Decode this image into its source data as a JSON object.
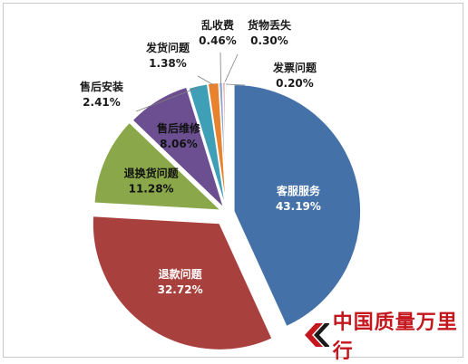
{
  "chart_data": {
    "type": "pie",
    "title": "",
    "slices": [
      {
        "label": "客服服务",
        "value": 43.19,
        "value_label": "43.19%",
        "color": "#4472a8"
      },
      {
        "label": "退款问题",
        "value": 32.72,
        "value_label": "32.72%",
        "color": "#a8403d"
      },
      {
        "label": "退换货问题",
        "value": 11.28,
        "value_label": "11.28%",
        "color": "#8aa84a"
      },
      {
        "label": "售后维修",
        "value": 8.06,
        "value_label": "8.06%",
        "color": "#6b4f91"
      },
      {
        "label": "售后安装",
        "value": 2.41,
        "value_label": "2.41%",
        "color": "#3f9fb6"
      },
      {
        "label": "发货问题",
        "value": 1.38,
        "value_label": "1.38%",
        "color": "#e8822e"
      },
      {
        "label": "乱收费",
        "value": 0.46,
        "value_label": "0.46%",
        "color": "#8ea7cf"
      },
      {
        "label": "货物丢失",
        "value": 0.3,
        "value_label": "0.30%",
        "color": "#d9928f"
      },
      {
        "label": "发票问题",
        "value": 0.2,
        "value_label": "0.20%",
        "color": "#b9cf8c"
      }
    ],
    "legend": "none",
    "start": "12 o'clock, clockwise"
  },
  "watermark": {
    "text": "中国质量万里行",
    "color": "#c4161c"
  }
}
